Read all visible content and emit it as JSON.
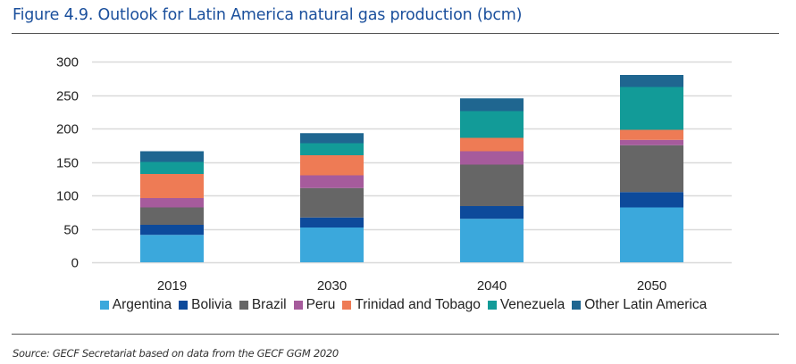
{
  "figure": {
    "title": "Figure 4.9. Outlook for Latin America natural gas production (bcm)",
    "source": "Source: GECF Secretariat based on data from the GECF GGM 2020"
  },
  "chart_data": {
    "type": "bar",
    "stacked": true,
    "title": "Figure 4.9. Outlook for Latin America natural gas production (bcm)",
    "xlabel": "",
    "ylabel": "",
    "unit": "bcm",
    "categories": [
      "2019",
      "2030",
      "2040",
      "2050"
    ],
    "ylim": [
      0,
      300
    ],
    "yticks": [
      0,
      50,
      100,
      150,
      200,
      250,
      300
    ],
    "ytick_labels": [
      "0",
      "50",
      "100",
      "150",
      "200",
      "250",
      "300"
    ],
    "grid": true,
    "legend_position": "bottom",
    "series": [
      {
        "name": "Argentina",
        "color": "#3ba8dc",
        "values": [
          41,
          52,
          65,
          82
        ]
      },
      {
        "name": "Bolivia",
        "color": "#0d4a9b",
        "values": [
          15,
          15,
          19,
          23
        ]
      },
      {
        "name": "Brazil",
        "color": "#666666",
        "values": [
          26,
          44,
          62,
          70
        ]
      },
      {
        "name": "Peru",
        "color": "#a65b9c",
        "values": [
          14,
          19,
          20,
          8
        ]
      },
      {
        "name": "Trinidad and Tobago",
        "color": "#ee7b55",
        "values": [
          36,
          30,
          20,
          15
        ]
      },
      {
        "name": "Venezuela",
        "color": "#129b98",
        "values": [
          18,
          18,
          40,
          64
        ]
      },
      {
        "name": "Other Latin America",
        "color": "#1f6690",
        "values": [
          16,
          15,
          19,
          18
        ]
      }
    ],
    "gridline_color": "#d9d9d9"
  }
}
